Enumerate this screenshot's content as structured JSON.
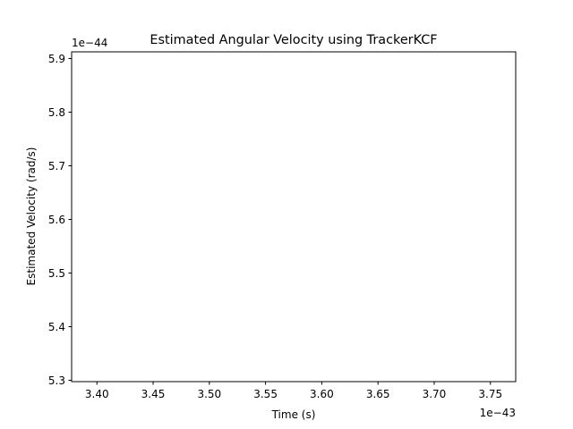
{
  "chart_data": {
    "type": "line",
    "title": "Estimated Angular Velocity using TrackerKCF",
    "xlabel": "Time (s)",
    "ylabel": "Estimated Velocity (rad/s)",
    "x_offset_text": "1e−43",
    "y_offset_text": "1e−44",
    "x_scale": 1e-43,
    "y_scale": 1e-44,
    "xlim": [
      3.3775,
      3.7725
    ],
    "ylim": [
      5.2975,
      5.9125
    ],
    "x_ticks": [
      3.4,
      3.45,
      3.5,
      3.55,
      3.6,
      3.65,
      3.7,
      3.75
    ],
    "x_tick_labels": [
      "3.40",
      "3.45",
      "3.50",
      "3.55",
      "3.60",
      "3.65",
      "3.70",
      "3.75"
    ],
    "y_ticks": [
      5.3,
      5.4,
      5.5,
      5.6,
      5.7,
      5.8,
      5.9
    ],
    "y_tick_labels": [
      "5.3",
      "5.4",
      "5.5",
      "5.6",
      "5.7",
      "5.8",
      "5.9"
    ],
    "grid": false,
    "series": [
      {
        "x": [],
        "y": [],
        "color": "#1f77b4"
      }
    ]
  }
}
